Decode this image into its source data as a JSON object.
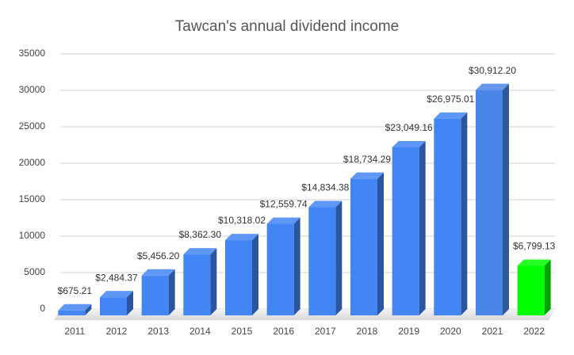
{
  "chart_data": {
    "type": "bar3d",
    "title": "Tawcan's annual dividend income",
    "categories": [
      "2011",
      "2012",
      "2013",
      "2014",
      "2015",
      "2016",
      "2017",
      "2018",
      "2019",
      "2020",
      "2021",
      "2022"
    ],
    "values": [
      675.21,
      2484.37,
      5456.2,
      8362.3,
      10318.02,
      12559.74,
      14834.38,
      18734.29,
      23049.16,
      26975.01,
      30912.2,
      6799.13
    ],
    "value_labels": [
      "$675.21",
      "$2,484.37",
      "$5,456.20",
      "$8,362.30",
      "$10,318.02",
      "$12,559.74",
      "$14,834.38",
      "$18,734.29",
      "$23,049.16",
      "$26,975.01",
      "$30,912.20",
      "$6,799.13"
    ],
    "colors": [
      "#4285f4",
      "#4285f4",
      "#4285f4",
      "#4285f4",
      "#4285f4",
      "#4285f4",
      "#4285f4",
      "#4285f4",
      "#4285f4",
      "#4285f4",
      "#4a86e8",
      "#00ff00"
    ],
    "ylim": [
      0,
      35000
    ],
    "yticks": [
      0,
      5000,
      10000,
      15000,
      20000,
      25000,
      30000,
      35000
    ],
    "grid": true
  }
}
